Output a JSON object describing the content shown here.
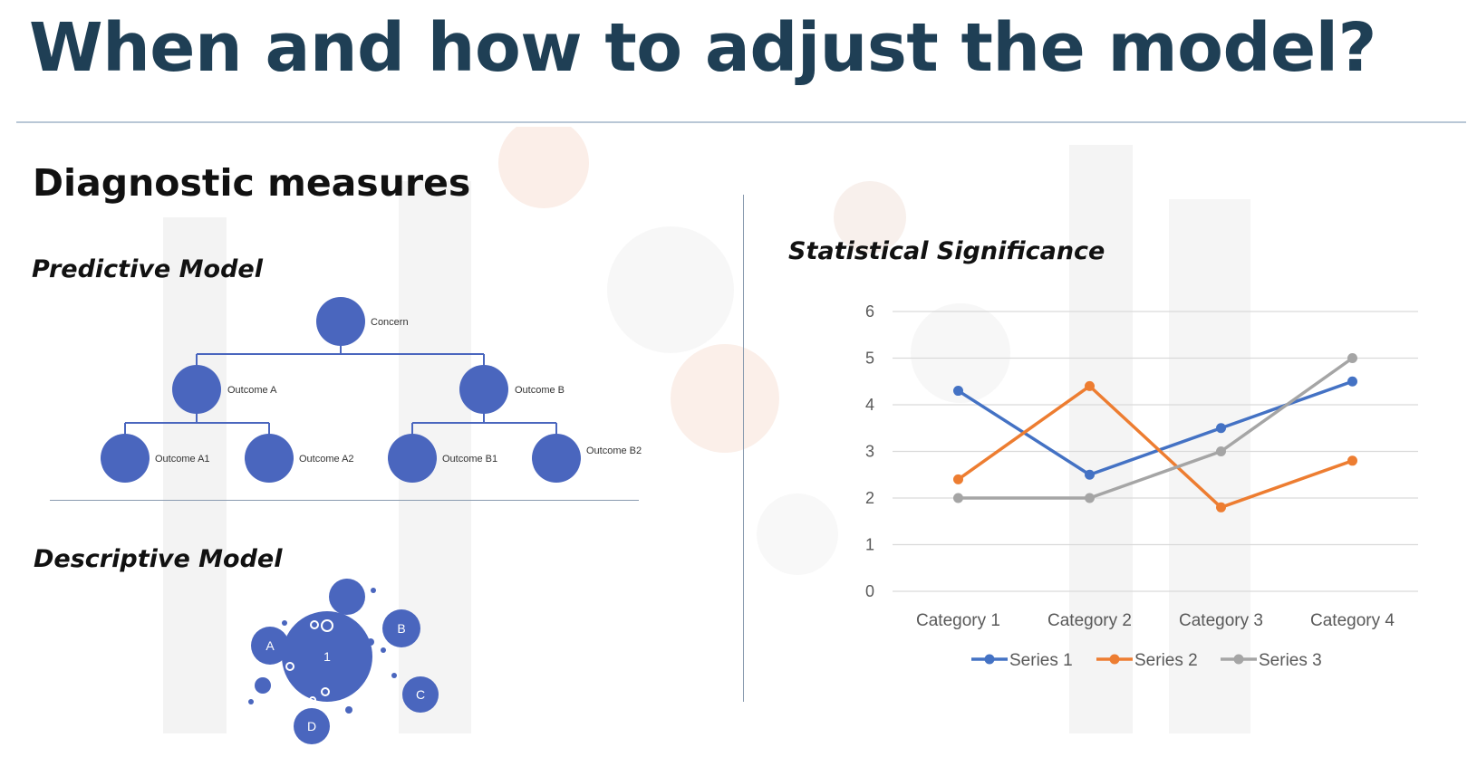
{
  "slide": {
    "title": "When and how to adjust the model?",
    "subtitle": "Diagnostic measures"
  },
  "predictive": {
    "label": "Predictive Model",
    "nodes": {
      "root": "Concern",
      "a": "Outcome A",
      "b": "Outcome B",
      "a1": "Outcome A1",
      "a2": "Outcome A2",
      "b1": "Outcome B1",
      "b2": "Outcome B2"
    }
  },
  "descriptive": {
    "label": "Descriptive Model",
    "center": "1",
    "bubbles": [
      "A",
      "B",
      "C",
      "D"
    ]
  },
  "statistical": {
    "label": "Statistical Significance"
  },
  "colors": {
    "title": "#1f3f55",
    "node": "#4a66be",
    "series1": "#4472c4",
    "series2": "#ed7d31",
    "series3": "#a5a5a5"
  },
  "chart_data": {
    "type": "line",
    "categories": [
      "Category 1",
      "Category 2",
      "Category 3",
      "Category 4"
    ],
    "series": [
      {
        "name": "Series 1",
        "values": [
          4.3,
          2.5,
          3.5,
          4.5
        ],
        "color": "#4472c4"
      },
      {
        "name": "Series 2",
        "values": [
          2.4,
          4.4,
          1.8,
          2.8
        ],
        "color": "#ed7d31"
      },
      {
        "name": "Series 3",
        "values": [
          2.0,
          2.0,
          3.0,
          5.0
        ],
        "color": "#a5a5a5"
      }
    ],
    "ylim": [
      0,
      6
    ],
    "yticks": [
      "0",
      "1",
      "2",
      "3",
      "4",
      "5",
      "6"
    ],
    "grid": true,
    "legend": "bottom"
  }
}
